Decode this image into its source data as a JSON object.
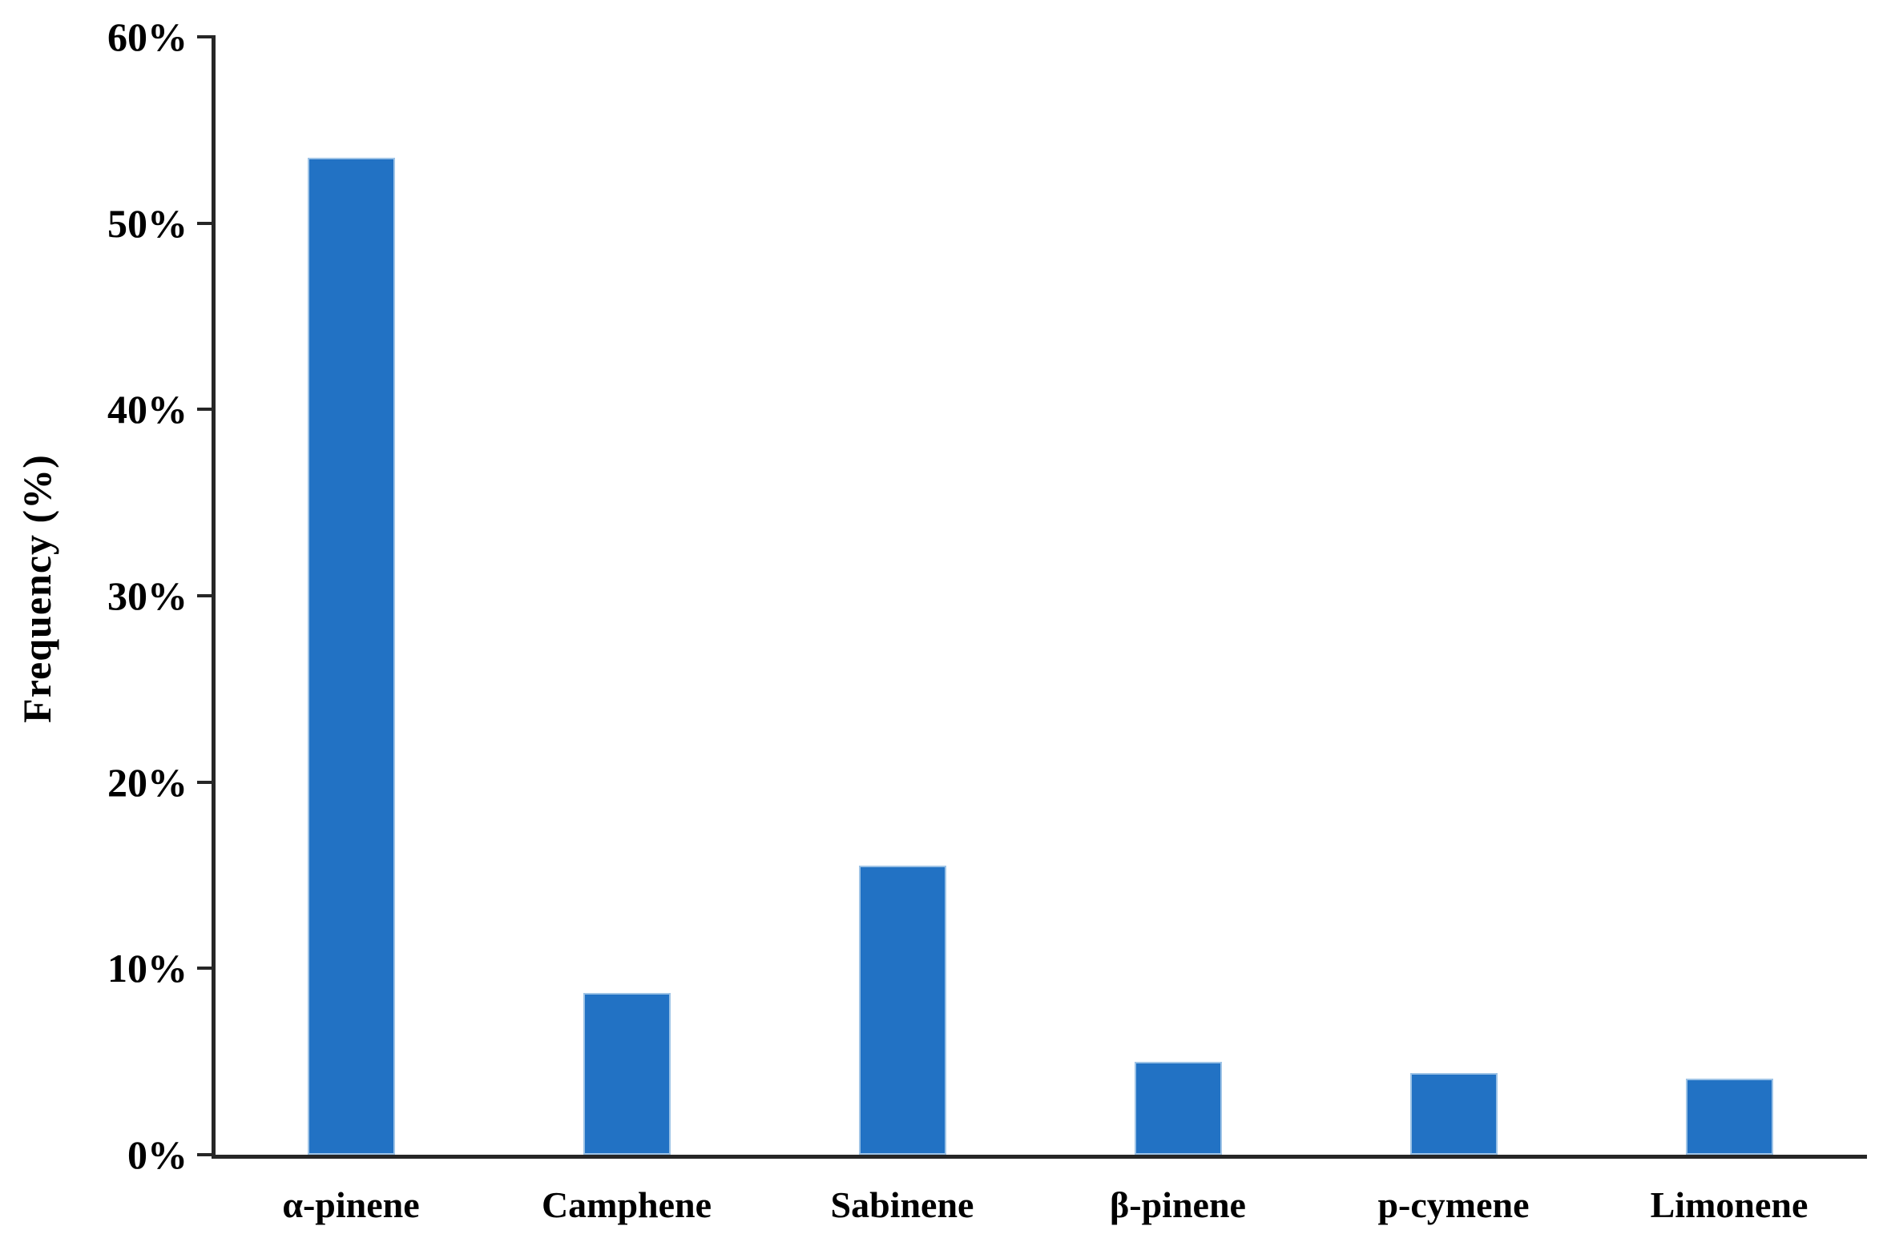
{
  "figure": {
    "background_color": "#FFFFFF",
    "text_color": "#000000",
    "axis_color": "#262626"
  },
  "y_axis": {
    "title": "Frequency (%)",
    "tick_labels": [
      "60%",
      "50%",
      "40%",
      "30%",
      "20%",
      "10%",
      "0%"
    ]
  },
  "chart_data": {
    "type": "bar",
    "title": "",
    "xlabel": "",
    "ylabel": "Frequency (%)",
    "categories": [
      "α-pinene",
      "Camphene",
      "Sabinene",
      "β-pinene",
      "p-cymene",
      "Limonene"
    ],
    "values": [
      53.5,
      8.7,
      15.5,
      5.0,
      4.4,
      4.1
    ],
    "ylim": [
      0,
      60
    ],
    "ytick_step": 10,
    "grid": false,
    "legend_position": "none",
    "bar_fill_color": "#2272C4",
    "bar_edge_color": "#9DC3E6"
  }
}
